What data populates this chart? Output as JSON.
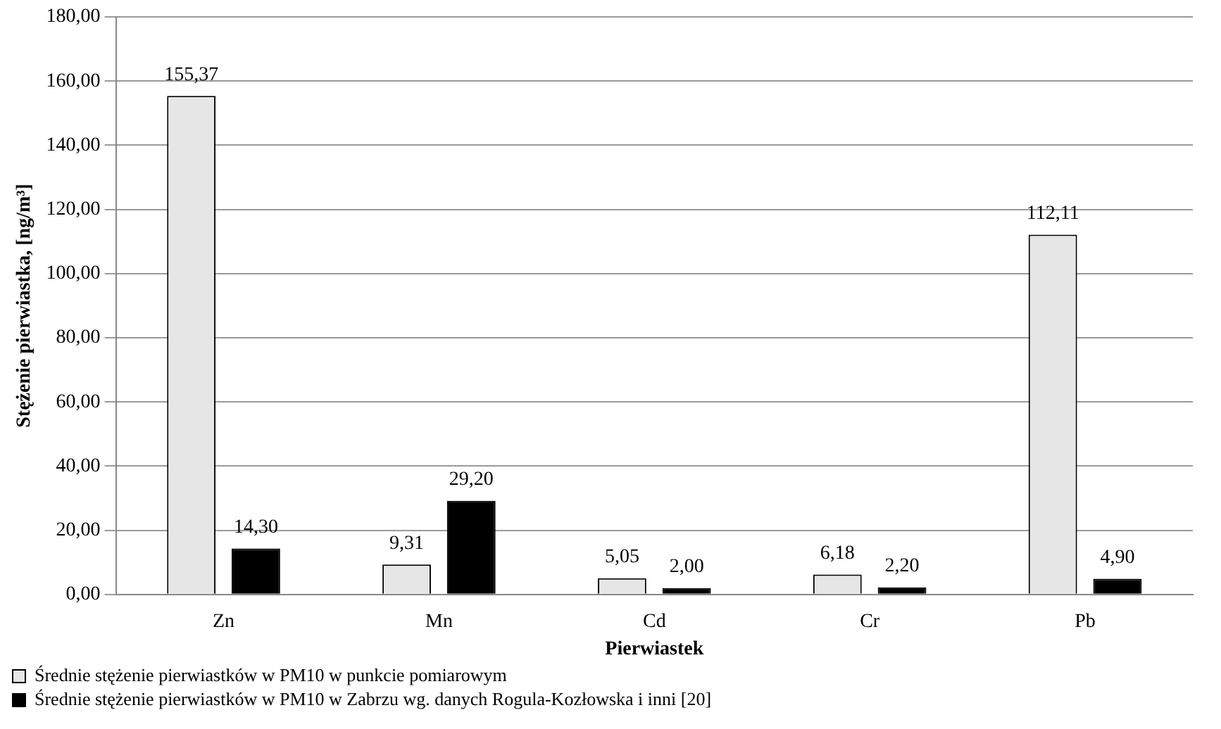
{
  "chart_data": {
    "type": "bar",
    "xlabel": "Pierwiastek",
    "ylabel": "Stężenie pierwiastka, [ng/m³]",
    "categories": [
      "Zn",
      "Mn",
      "Cd",
      "Cr",
      "Pb"
    ],
    "series": [
      {
        "name": "Średnie stężenie pierwiastków w PM10 w punkcie pomiarowym",
        "color": "#e6e6e6",
        "values": [
          155.37,
          9.31,
          5.05,
          6.18,
          112.11
        ],
        "value_labels": [
          "155,37",
          "9,31",
          "5,05",
          "6,18",
          "112,11"
        ]
      },
      {
        "name": "Średnie stężenie pierwiastków w PM10 w Zabrzu wg. danych Rogula-Kozłowska i inni [20]",
        "color": "#000000",
        "values": [
          14.3,
          29.2,
          2.0,
          2.2,
          4.9
        ],
        "value_labels": [
          "14,30",
          "29,20",
          "2,00",
          "2,20",
          "4,90"
        ]
      }
    ],
    "ylim": [
      0,
      180
    ],
    "yticks": [
      {
        "value": 0,
        "label": "0,00"
      },
      {
        "value": 20,
        "label": "20,00"
      },
      {
        "value": 40,
        "label": "40,00"
      },
      {
        "value": 60,
        "label": "60,00"
      },
      {
        "value": 80,
        "label": "80,00"
      },
      {
        "value": 100,
        "label": "100,00"
      },
      {
        "value": 120,
        "label": "120,00"
      },
      {
        "value": 140,
        "label": "140,00"
      },
      {
        "value": 160,
        "label": "160,00"
      },
      {
        "value": 180,
        "label": "180,00"
      }
    ],
    "grid": "y",
    "legend": "bottom left"
  }
}
